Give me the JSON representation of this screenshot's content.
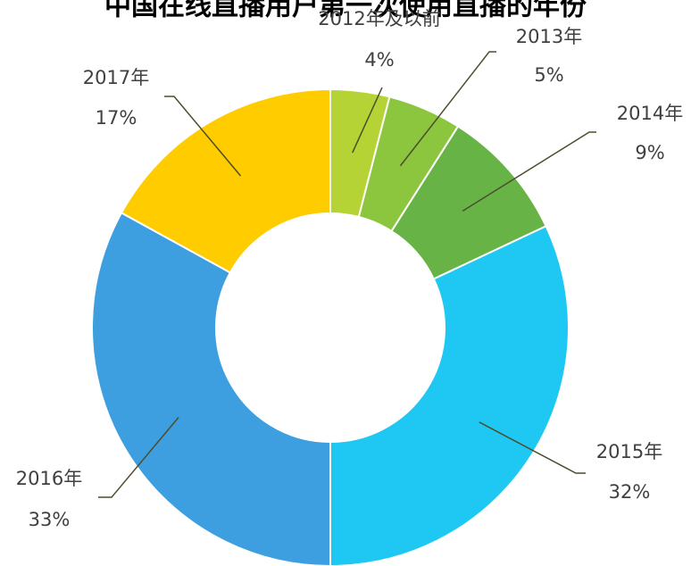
{
  "chart_data": {
    "type": "donut",
    "title": "中国在线直播用户第一次使用直播的年份",
    "categories": [
      "2012年及以前",
      "2013年",
      "2014年",
      "2015年",
      "2016年",
      "2017年"
    ],
    "values": [
      4,
      5,
      9,
      32,
      33,
      17
    ],
    "value_labels": [
      "4%",
      "5%",
      "9%",
      "32%",
      "33%",
      "17%"
    ],
    "colors": [
      "#b5d334",
      "#8cc63f",
      "#67b346",
      "#1fc8f2",
      "#3d9fe0",
      "#ffcc00"
    ]
  }
}
